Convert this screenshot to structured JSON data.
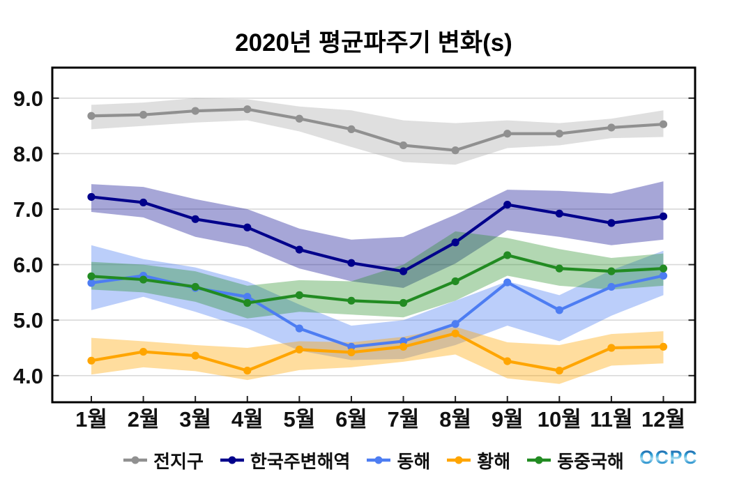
{
  "title": "2020년 평균파주기 변화(s)",
  "logo_text": "OCPC",
  "chart_data": {
    "type": "line",
    "title": "2020년 평균파주기 변화(s)",
    "unit": "s",
    "grid": "horizontal",
    "legend_position": "bottom",
    "categories": [
      "1월",
      "2월",
      "3월",
      "4월",
      "5월",
      "6월",
      "7월",
      "8월",
      "9월",
      "10월",
      "11월",
      "12월"
    ],
    "y_tick_values": [
      9,
      8,
      7,
      6,
      5,
      4
    ],
    "y_tick_labels": [
      "9.0",
      "8.0",
      "7.0",
      "6.0",
      "5.0",
      "4.0"
    ],
    "ylim": [
      3.52,
      9.55
    ],
    "series": [
      {
        "key": "global",
        "name": "전지구",
        "color": "#909090",
        "band_color": "#b0b0b0",
        "band_opacity": 0.4,
        "values": [
          8.68,
          8.7,
          8.77,
          8.8,
          8.63,
          8.44,
          8.15,
          8.06,
          8.36,
          8.36,
          8.47,
          8.53
        ],
        "upper": [
          8.88,
          8.92,
          9.0,
          8.98,
          8.85,
          8.78,
          8.6,
          8.55,
          8.6,
          8.55,
          8.63,
          8.78
        ],
        "lower": [
          8.44,
          8.5,
          8.56,
          8.6,
          8.4,
          8.12,
          7.85,
          7.8,
          8.1,
          8.15,
          8.28,
          8.3
        ]
      },
      {
        "key": "korea-adjacent-seas",
        "name": "한국주변해역",
        "color": "#00008b",
        "band_color": "#00008b",
        "band_opacity": 0.35,
        "values": [
          7.22,
          7.12,
          6.82,
          6.67,
          6.27,
          6.03,
          5.88,
          6.4,
          7.08,
          6.92,
          6.75,
          6.87
        ],
        "upper": [
          7.45,
          7.4,
          7.18,
          7.0,
          6.65,
          6.45,
          6.5,
          6.9,
          7.35,
          7.33,
          7.28,
          7.5
        ],
        "lower": [
          6.95,
          6.85,
          6.5,
          6.32,
          5.93,
          5.7,
          5.58,
          6.02,
          6.62,
          6.5,
          6.35,
          6.45
        ]
      },
      {
        "key": "east-sea",
        "name": "동해",
        "color": "#4d7df2",
        "band_color": "#4d7df2",
        "band_opacity": 0.38,
        "values": [
          5.67,
          5.8,
          5.58,
          5.42,
          4.85,
          4.52,
          4.62,
          4.93,
          5.68,
          5.18,
          5.6,
          5.8
        ],
        "upper": [
          6.35,
          6.1,
          5.95,
          5.7,
          5.28,
          4.9,
          5.0,
          5.35,
          5.7,
          5.45,
          5.9,
          6.25
        ],
        "lower": [
          5.18,
          5.42,
          5.15,
          4.85,
          4.45,
          4.28,
          4.3,
          4.55,
          4.9,
          4.62,
          5.08,
          5.45
        ]
      },
      {
        "key": "yellow-sea",
        "name": "황해",
        "color": "#ffa500",
        "band_color": "#ffa500",
        "band_opacity": 0.38,
        "values": [
          4.27,
          4.43,
          4.36,
          4.09,
          4.47,
          4.42,
          4.52,
          4.76,
          4.26,
          4.09,
          4.5,
          4.52
        ],
        "upper": [
          4.68,
          4.62,
          4.55,
          4.5,
          4.62,
          4.6,
          4.7,
          4.88,
          4.6,
          4.55,
          4.75,
          4.8
        ],
        "lower": [
          4.02,
          4.15,
          4.08,
          3.92,
          4.1,
          4.15,
          4.25,
          4.38,
          3.95,
          3.85,
          4.18,
          4.22
        ]
      },
      {
        "key": "east-china-sea",
        "name": "동중국해",
        "color": "#228b22",
        "band_color": "#228b22",
        "band_opacity": 0.35,
        "values": [
          5.79,
          5.73,
          5.6,
          5.31,
          5.45,
          5.35,
          5.31,
          5.7,
          6.17,
          5.93,
          5.88,
          5.93
        ],
        "upper": [
          6.05,
          6.0,
          5.88,
          5.62,
          5.72,
          5.7,
          6.0,
          6.6,
          6.48,
          6.28,
          6.12,
          6.2
        ],
        "lower": [
          5.55,
          5.5,
          5.33,
          5.03,
          5.15,
          5.1,
          5.05,
          5.35,
          5.8,
          5.62,
          5.55,
          5.62
        ]
      }
    ]
  }
}
